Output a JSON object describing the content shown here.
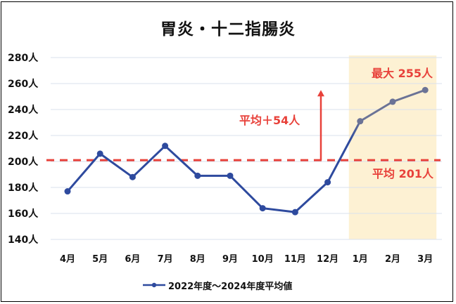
{
  "chart_data": {
    "type": "line",
    "title": "胃炎・十二指腸炎",
    "xlabel": "",
    "ylabel": "",
    "categories": [
      "4月",
      "5月",
      "6月",
      "7月",
      "8月",
      "9月",
      "10月",
      "11月",
      "12月",
      "1月",
      "2月",
      "3月"
    ],
    "series": [
      {
        "name": "2022年度～2024年度平均値",
        "values": [
          177,
          206,
          188,
          212,
          189,
          189,
          164,
          161,
          184,
          231,
          246,
          255
        ],
        "color": "#2e4a9e",
        "highlight_color": "#6b7396"
      }
    ],
    "ylim": [
      140,
      280
    ],
    "yticks": [
      280,
      260,
      240,
      220,
      200,
      180,
      160,
      140
    ],
    "ytick_labels": [
      "280人",
      "260人",
      "240人",
      "220人",
      "200人",
      "180人",
      "160人",
      "140人"
    ],
    "grid": true,
    "legend_position": "bottom",
    "reference_line": {
      "value": 201,
      "label": "平均 201人",
      "style": "dashed",
      "color": "#e8413a"
    },
    "highlight_region": {
      "from": "1月",
      "to": "3月",
      "color": "#fdf1d3"
    },
    "annotations": [
      {
        "text": "最大 255人",
        "target": "3月"
      },
      {
        "text": "平均＋54人",
        "type": "arrow",
        "from": 201,
        "to": 255
      },
      {
        "text": "平均 201人",
        "target": "reference_line"
      }
    ]
  },
  "title": "胃炎・十二指腸炎",
  "yaxis": {
    "labels": [
      "280人",
      "260人",
      "240人",
      "220人",
      "200人",
      "180人",
      "160人",
      "140人"
    ]
  },
  "xaxis": {
    "labels": [
      "4月",
      "5月",
      "6月",
      "7月",
      "8月",
      "9月",
      "10月",
      "11月",
      "12月",
      "1月",
      "2月",
      "3月"
    ]
  },
  "annotations": {
    "max_label": "最大 255人",
    "diff_label": "平均＋54人",
    "avg_label": "平均 201人"
  },
  "legend": {
    "label": "2022年度～2024年度平均値"
  },
  "colors": {
    "line": "#2e4a9e",
    "highlight_line": "#6b7396",
    "accent": "#e8413a",
    "highlight_bg": "#fdf1d3",
    "grid": "#d9e1ee"
  }
}
